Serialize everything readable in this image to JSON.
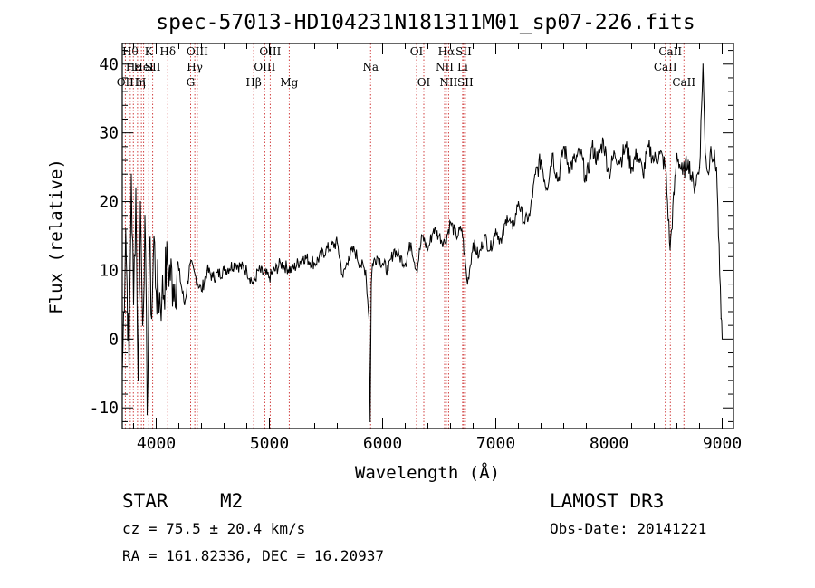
{
  "chart_data": {
    "type": "line",
    "title": "spec-57013-HD104231N181311M01_sp07-226.fits",
    "xlabel": "Wavelength (Å)",
    "ylabel": "Flux (relative)",
    "xlim": [
      3700,
      9100
    ],
    "ylim": [
      -13,
      43
    ],
    "xticks": [
      4000,
      5000,
      6000,
      7000,
      8000,
      9000
    ],
    "yticks": [
      -10,
      0,
      10,
      20,
      30,
      40
    ],
    "grid": false,
    "series": [
      {
        "name": "flux",
        "x": [
          3700,
          3730,
          3760,
          3780,
          3800,
          3820,
          3840,
          3860,
          3880,
          3900,
          3920,
          3940,
          3960,
          3980,
          4000,
          4050,
          4100,
          4150,
          4200,
          4250,
          4300,
          4350,
          4400,
          4450,
          4500,
          4600,
          4700,
          4800,
          4860,
          4900,
          5000,
          5100,
          5200,
          5300,
          5400,
          5500,
          5600,
          5650,
          5700,
          5750,
          5800,
          5850,
          5880,
          5890,
          5900,
          5910,
          5950,
          6000,
          6050,
          6100,
          6150,
          6200,
          6250,
          6300,
          6350,
          6400,
          6450,
          6500,
          6550,
          6600,
          6650,
          6700,
          6750,
          6800,
          6850,
          6900,
          6950,
          7000,
          7050,
          7100,
          7150,
          7200,
          7250,
          7300,
          7350,
          7400,
          7450,
          7500,
          7550,
          7600,
          7650,
          7700,
          7750,
          7800,
          7850,
          7900,
          7950,
          8000,
          8050,
          8100,
          8150,
          8200,
          8250,
          8300,
          8350,
          8400,
          8450,
          8500,
          8540,
          8600,
          8650,
          8700,
          8750,
          8800,
          8830,
          8850,
          8880,
          8900,
          8950,
          8990,
          9000
        ],
        "y": [
          -5,
          16,
          -4,
          24,
          5,
          22,
          -6,
          20,
          2,
          18,
          -11,
          14,
          3,
          15,
          7,
          6,
          11,
          8,
          10,
          5,
          11,
          9,
          7,
          10,
          9,
          10,
          11,
          10,
          8,
          10,
          9,
          11,
          10,
          12,
          11,
          13,
          14,
          9,
          12,
          13,
          11,
          10,
          3,
          -12,
          8,
          11,
          12,
          11,
          10,
          13,
          12,
          11,
          14,
          10,
          15,
          13,
          16,
          15,
          14,
          17,
          15,
          16,
          8,
          14,
          12,
          15,
          13,
          16,
          14,
          18,
          16,
          20,
          17,
          18,
          24,
          26,
          22,
          27,
          23,
          28,
          25,
          26,
          27,
          23,
          28,
          26,
          29,
          24,
          27,
          26,
          28,
          25,
          27,
          24,
          28,
          26,
          27,
          25,
          13,
          27,
          24,
          26,
          22,
          25,
          40,
          27,
          24,
          28,
          25,
          3,
          0
        ]
      }
    ],
    "lines": [
      {
        "wl": 3727,
        "row": 2,
        "label": "OII"
      },
      {
        "wl": 3771,
        "row": 0,
        "label": "Hθ"
      },
      {
        "wl": 3798,
        "row": 1,
        "label": "Hε"
      },
      {
        "wl": 3835,
        "row": 2,
        "label": "Hη"
      },
      {
        "wl": 3869,
        "row": 2,
        "label": "H"
      },
      {
        "wl": 3889,
        "row": 1,
        "label": "HeI"
      },
      {
        "wl": 3934,
        "row": 0,
        "label": "K"
      },
      {
        "wl": 3969,
        "row": 1,
        "label": "SII"
      },
      {
        "wl": 4102,
        "row": 0,
        "label": "Hδ"
      },
      {
        "wl": 4304,
        "row": 2,
        "label": "G"
      },
      {
        "wl": 4341,
        "row": 1,
        "label": "Hγ"
      },
      {
        "wl": 4363,
        "row": 0,
        "label": "OIII"
      },
      {
        "wl": 4861,
        "row": 2,
        "label": "Hβ"
      },
      {
        "wl": 4959,
        "row": 1,
        "label": "OIII"
      },
      {
        "wl": 5007,
        "row": 0,
        "label": "OIII"
      },
      {
        "wl": 5175,
        "row": 2,
        "label": "Mg"
      },
      {
        "wl": 5894,
        "row": 1,
        "label": "Na"
      },
      {
        "wl": 6300,
        "row": 0,
        "label": "OI"
      },
      {
        "wl": 6364,
        "row": 2,
        "label": "OI"
      },
      {
        "wl": 6548,
        "row": 1,
        "label": "NII"
      },
      {
        "wl": 6563,
        "row": 0,
        "label": "Hα"
      },
      {
        "wl": 6583,
        "row": 2,
        "label": "NII"
      },
      {
        "wl": 6707,
        "row": 1,
        "label": "Li"
      },
      {
        "wl": 6716,
        "row": 0,
        "label": "SII"
      },
      {
        "wl": 6731,
        "row": 2,
        "label": "SII"
      },
      {
        "wl": 8498,
        "row": 1,
        "label": "CaII"
      },
      {
        "wl": 8542,
        "row": 0,
        "label": "CaII"
      },
      {
        "wl": 8662,
        "row": 2,
        "label": "CaII"
      }
    ]
  },
  "info": {
    "obj_class": "STAR",
    "subclass": "M2",
    "cz": "cz =  75.5 ± 20.4 km/s",
    "coords": "RA = 161.82336, DEC =  16.20937",
    "survey": "LAMOST DR3",
    "obs_date": "Obs-Date: 20141221"
  }
}
